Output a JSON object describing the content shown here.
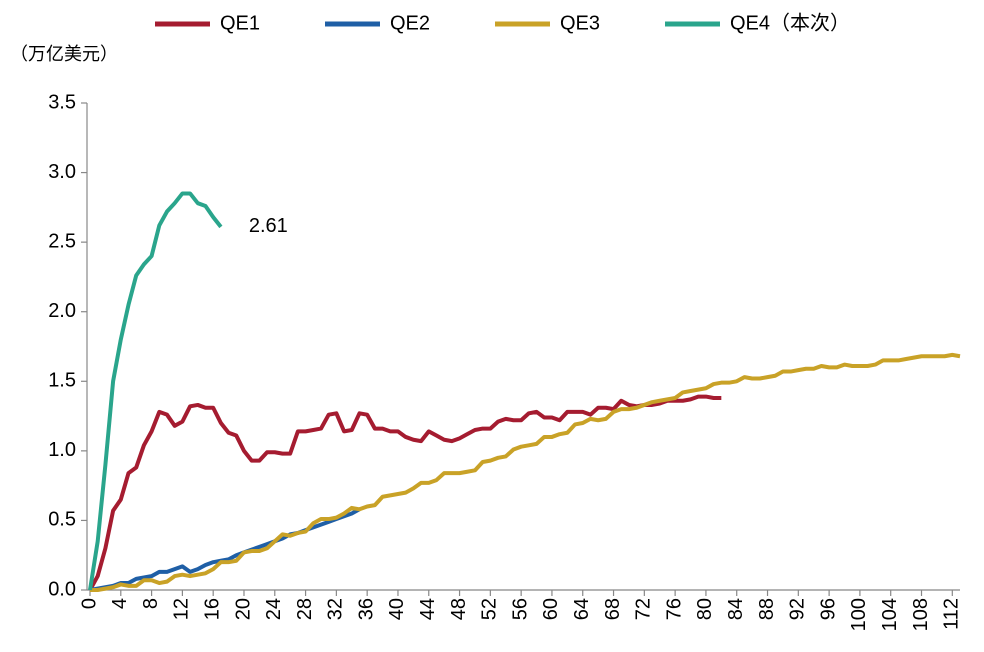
{
  "chart_data": {
    "type": "line",
    "y_label": "（万亿美元）",
    "annotation": "2.61",
    "xlim": [
      0,
      113
    ],
    "xticks": [
      0,
      4,
      8,
      12,
      16,
      20,
      24,
      28,
      32,
      36,
      40,
      44,
      48,
      52,
      56,
      60,
      64,
      68,
      72,
      76,
      80,
      84,
      88,
      92,
      96,
      100,
      104,
      108,
      112
    ],
    "ylim": [
      0,
      3.5
    ],
    "yticks": [
      {
        "value": 0,
        "label": "0.0"
      },
      0.5,
      {
        "value": 1,
        "label": "1.0"
      },
      1.5,
      {
        "value": 2,
        "label": "2.0"
      },
      2.5,
      {
        "value": 3,
        "label": "3.0"
      },
      3.5
    ],
    "series": [
      {
        "name": "QE1",
        "color": "#a51c30",
        "x": [
          0,
          1,
          2,
          3,
          4,
          5,
          6,
          7,
          8,
          9,
          10,
          11,
          12,
          13,
          14,
          15,
          16,
          17,
          18,
          19,
          20,
          21,
          22,
          23,
          24,
          25,
          26,
          27,
          28,
          29,
          30,
          31,
          32,
          33,
          34,
          35,
          36,
          37,
          38,
          39,
          40,
          41,
          42,
          43,
          44,
          45,
          46,
          47,
          48,
          49,
          50,
          51,
          52,
          53,
          54,
          55,
          56,
          57,
          58,
          59,
          60,
          61,
          62,
          63,
          64,
          65,
          66,
          67,
          68,
          69,
          70,
          71,
          72,
          73,
          74,
          75,
          76,
          77,
          78,
          79,
          80,
          81,
          82
        ],
        "values": [
          0,
          0.1,
          0.3,
          0.57,
          0.65,
          0.84,
          0.88,
          1.04,
          1.14,
          1.28,
          1.26,
          1.18,
          1.21,
          1.32,
          1.33,
          1.31,
          1.31,
          1.2,
          1.13,
          1.11,
          1.0,
          0.93,
          0.93,
          0.99,
          0.99,
          0.98,
          0.98,
          1.14,
          1.14,
          1.15,
          1.16,
          1.26,
          1.27,
          1.14,
          1.15,
          1.27,
          1.26,
          1.16,
          1.16,
          1.14,
          1.14,
          1.1,
          1.08,
          1.07,
          1.14,
          1.11,
          1.08,
          1.07,
          1.09,
          1.12,
          1.15,
          1.16,
          1.16,
          1.21,
          1.23,
          1.22,
          1.22,
          1.27,
          1.28,
          1.24,
          1.24,
          1.22,
          1.28,
          1.28,
          1.28,
          1.26,
          1.31,
          1.31,
          1.3,
          1.36,
          1.33,
          1.32,
          1.33,
          1.33,
          1.34,
          1.36,
          1.36,
          1.36,
          1.37,
          1.39,
          1.39,
          1.38,
          1.38
        ]
      },
      {
        "name": "QE2",
        "color": "#1f5fa6",
        "x": [
          0,
          1,
          2,
          3,
          4,
          5,
          6,
          7,
          8,
          9,
          10,
          11,
          12,
          13,
          14,
          15,
          16,
          17,
          18,
          19,
          20,
          21,
          22,
          23,
          24,
          25,
          26,
          27,
          28,
          29,
          30,
          31,
          32,
          33,
          34,
          35
        ],
        "values": [
          0,
          0.01,
          0.02,
          0.03,
          0.05,
          0.05,
          0.08,
          0.09,
          0.1,
          0.13,
          0.13,
          0.15,
          0.17,
          0.13,
          0.15,
          0.18,
          0.2,
          0.21,
          0.22,
          0.25,
          0.27,
          0.29,
          0.31,
          0.33,
          0.35,
          0.37,
          0.4,
          0.41,
          0.43,
          0.45,
          0.47,
          0.49,
          0.51,
          0.53,
          0.55,
          0.58
        ]
      },
      {
        "name": "QE3",
        "color": "#c9a227",
        "x": [
          0,
          1,
          2,
          3,
          4,
          5,
          6,
          7,
          8,
          9,
          10,
          11,
          12,
          13,
          14,
          15,
          16,
          17,
          18,
          19,
          20,
          21,
          22,
          23,
          24,
          25,
          26,
          27,
          28,
          29,
          30,
          31,
          32,
          33,
          34,
          35,
          36,
          37,
          38,
          39,
          40,
          41,
          42,
          43,
          44,
          45,
          46,
          47,
          48,
          49,
          50,
          51,
          52,
          53,
          54,
          55,
          56,
          57,
          58,
          59,
          60,
          61,
          62,
          63,
          64,
          65,
          66,
          67,
          68,
          69,
          70,
          71,
          72,
          73,
          74,
          75,
          76,
          77,
          78,
          79,
          80,
          81,
          82,
          83,
          84,
          85,
          86,
          87,
          88,
          89,
          90,
          91,
          92,
          93,
          94,
          95,
          96,
          97,
          98,
          99,
          100,
          101,
          102,
          103,
          104,
          105,
          106,
          107,
          108,
          109,
          110,
          111,
          112,
          113
        ],
        "values": [
          0,
          0,
          0.01,
          0.02,
          0.04,
          0.03,
          0.03,
          0.07,
          0.07,
          0.05,
          0.06,
          0.1,
          0.11,
          0.1,
          0.11,
          0.12,
          0.15,
          0.2,
          0.2,
          0.21,
          0.27,
          0.28,
          0.28,
          0.3,
          0.35,
          0.4,
          0.39,
          0.41,
          0.42,
          0.48,
          0.51,
          0.51,
          0.52,
          0.55,
          0.59,
          0.58,
          0.6,
          0.61,
          0.67,
          0.68,
          0.69,
          0.7,
          0.73,
          0.77,
          0.77,
          0.79,
          0.84,
          0.84,
          0.84,
          0.85,
          0.86,
          0.92,
          0.93,
          0.95,
          0.96,
          1.01,
          1.03,
          1.04,
          1.05,
          1.1,
          1.1,
          1.12,
          1.13,
          1.19,
          1.2,
          1.23,
          1.22,
          1.23,
          1.28,
          1.3,
          1.3,
          1.31,
          1.33,
          1.35,
          1.36,
          1.37,
          1.38,
          1.42,
          1.43,
          1.44,
          1.45,
          1.48,
          1.49,
          1.49,
          1.5,
          1.53,
          1.52,
          1.52,
          1.53,
          1.54,
          1.57,
          1.57,
          1.58,
          1.59,
          1.59,
          1.61,
          1.6,
          1.6,
          1.62,
          1.61,
          1.61,
          1.61,
          1.62,
          1.65,
          1.65,
          1.65,
          1.66,
          1.67,
          1.68,
          1.68,
          1.68,
          1.68,
          1.69,
          1.68
        ]
      },
      {
        "name": "QE4（本次）",
        "color": "#2aa58c",
        "x": [
          0,
          1,
          2,
          3,
          4,
          5,
          6,
          7,
          8,
          9,
          10,
          11,
          12,
          13,
          14,
          15,
          16,
          17
        ],
        "values": [
          0,
          0.35,
          0.9,
          1.5,
          1.8,
          2.05,
          2.26,
          2.34,
          2.4,
          2.62,
          2.72,
          2.78,
          2.85,
          2.85,
          2.78,
          2.76,
          2.68,
          2.61
        ]
      }
    ]
  }
}
